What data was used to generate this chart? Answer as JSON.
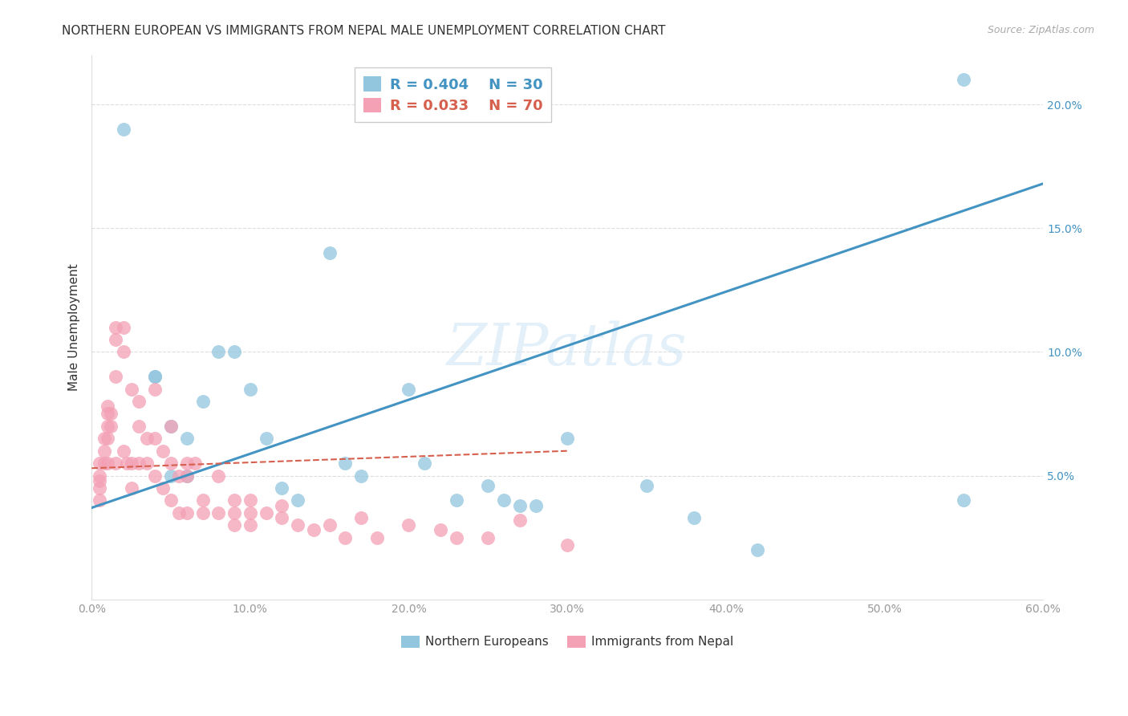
{
  "title": "NORTHERN EUROPEAN VS IMMIGRANTS FROM NEPAL MALE UNEMPLOYMENT CORRELATION CHART",
  "source": "Source: ZipAtlas.com",
  "ylabel": "Male Unemployment",
  "xlim": [
    0.0,
    0.6
  ],
  "ylim": [
    0.0,
    0.22
  ],
  "xticks": [
    0.0,
    0.1,
    0.2,
    0.3,
    0.4,
    0.5,
    0.6
  ],
  "xticklabels": [
    "0.0%",
    "10.0%",
    "20.0%",
    "30.0%",
    "40.0%",
    "50.0%",
    "60.0%"
  ],
  "yticks_right": [
    0.05,
    0.1,
    0.15,
    0.2
  ],
  "ytick_right_labels": [
    "5.0%",
    "10.0%",
    "15.0%",
    "20.0%"
  ],
  "blue_color": "#92c5de",
  "pink_color": "#f4a0b5",
  "blue_line_color": "#4393c3",
  "pink_line_color": "#d6604d",
  "legend_blue_r": "R = 0.404",
  "legend_blue_n": "N = 30",
  "legend_pink_r": "R = 0.033",
  "legend_pink_n": "N = 70",
  "legend_label_blue": "Northern Europeans",
  "legend_label_pink": "Immigrants from Nepal",
  "watermark": "ZIPatlas",
  "blue_scatter_x": [
    0.02,
    0.04,
    0.04,
    0.05,
    0.05,
    0.06,
    0.06,
    0.07,
    0.08,
    0.09,
    0.1,
    0.11,
    0.12,
    0.13,
    0.15,
    0.16,
    0.17,
    0.2,
    0.21,
    0.23,
    0.25,
    0.26,
    0.27,
    0.28,
    0.3,
    0.35,
    0.38,
    0.42,
    0.55,
    0.55
  ],
  "blue_scatter_y": [
    0.19,
    0.09,
    0.09,
    0.07,
    0.05,
    0.05,
    0.065,
    0.08,
    0.1,
    0.1,
    0.085,
    0.065,
    0.045,
    0.04,
    0.14,
    0.055,
    0.05,
    0.085,
    0.055,
    0.04,
    0.046,
    0.04,
    0.038,
    0.038,
    0.065,
    0.046,
    0.033,
    0.02,
    0.04,
    0.21
  ],
  "pink_scatter_x": [
    0.005,
    0.005,
    0.005,
    0.005,
    0.005,
    0.008,
    0.008,
    0.008,
    0.01,
    0.01,
    0.01,
    0.01,
    0.01,
    0.012,
    0.012,
    0.015,
    0.015,
    0.015,
    0.015,
    0.02,
    0.02,
    0.02,
    0.022,
    0.025,
    0.025,
    0.025,
    0.03,
    0.03,
    0.03,
    0.035,
    0.035,
    0.04,
    0.04,
    0.04,
    0.045,
    0.045,
    0.05,
    0.05,
    0.05,
    0.055,
    0.055,
    0.06,
    0.06,
    0.06,
    0.065,
    0.07,
    0.07,
    0.08,
    0.08,
    0.09,
    0.09,
    0.09,
    0.1,
    0.1,
    0.1,
    0.11,
    0.12,
    0.12,
    0.13,
    0.14,
    0.15,
    0.16,
    0.17,
    0.18,
    0.2,
    0.22,
    0.23,
    0.25,
    0.27,
    0.3
  ],
  "pink_scatter_y": [
    0.055,
    0.05,
    0.048,
    0.045,
    0.04,
    0.065,
    0.06,
    0.055,
    0.078,
    0.075,
    0.07,
    0.065,
    0.055,
    0.075,
    0.07,
    0.11,
    0.105,
    0.09,
    0.055,
    0.11,
    0.1,
    0.06,
    0.055,
    0.085,
    0.055,
    0.045,
    0.08,
    0.07,
    0.055,
    0.065,
    0.055,
    0.085,
    0.065,
    0.05,
    0.06,
    0.045,
    0.07,
    0.055,
    0.04,
    0.05,
    0.035,
    0.055,
    0.05,
    0.035,
    0.055,
    0.04,
    0.035,
    0.05,
    0.035,
    0.04,
    0.035,
    0.03,
    0.04,
    0.035,
    0.03,
    0.035,
    0.038,
    0.033,
    0.03,
    0.028,
    0.03,
    0.025,
    0.033,
    0.025,
    0.03,
    0.028,
    0.025,
    0.025,
    0.032,
    0.022
  ],
  "blue_trend_x": [
    0.0,
    0.6
  ],
  "blue_trend_y": [
    0.037,
    0.168
  ],
  "pink_trend_x": [
    0.0,
    0.3
  ],
  "pink_trend_y": [
    0.053,
    0.06
  ],
  "bg_color": "#ffffff",
  "grid_color": "#dddddd",
  "title_color": "#333333",
  "axis_color": "#999999",
  "title_fontsize": 11,
  "label_fontsize": 11,
  "tick_fontsize": 10
}
